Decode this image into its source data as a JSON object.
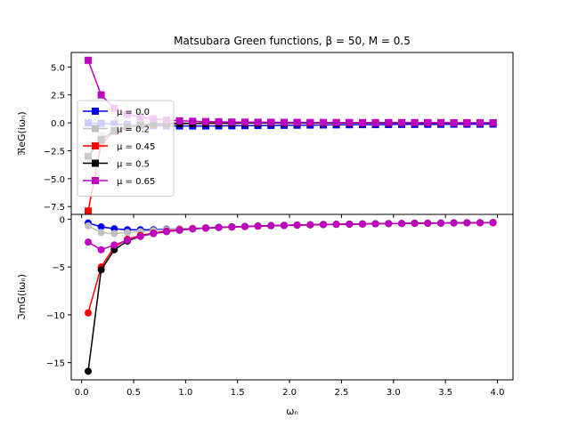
{
  "title": "Matsubara Green functions, β = 50, M = 0.5",
  "chart_data": [
    {
      "type": "line",
      "panel": "top",
      "ylabel": "ℜeG(iωₙ)",
      "xlabel": "",
      "ylim": [
        -8.2,
        6.3
      ],
      "xlim": [
        -0.1,
        4.15
      ],
      "yticks": [
        5.0,
        2.5,
        0.0,
        -2.5,
        -5.0,
        -7.5
      ],
      "ytick_labels": [
        "5.0",
        "2.5",
        "0.0",
        "−2.5",
        "−5.0",
        "−7.5"
      ],
      "xticks": [
        0.0,
        0.5,
        1.0,
        1.5,
        2.0,
        2.5,
        3.0,
        3.5,
        4.0
      ],
      "marker": "square",
      "legend_placement": "center-left",
      "x": [
        0.063,
        0.188,
        0.314,
        0.44,
        0.565,
        0.691,
        0.817,
        0.942,
        1.068,
        1.194,
        1.319,
        1.445,
        1.571,
        1.696,
        1.822,
        1.948,
        2.073,
        2.199,
        2.325,
        2.45,
        2.576,
        2.702,
        2.827,
        2.953,
        3.079,
        3.204,
        3.33,
        3.456,
        3.581,
        3.707,
        3.833,
        3.958
      ],
      "series": [
        {
          "name": "μ = 0.0",
          "color": "#0000ff",
          "values": [
            0.0,
            -0.05,
            -0.1,
            -0.15,
            -0.2,
            -0.25,
            -0.27,
            -0.28,
            -0.28,
            -0.28,
            -0.27,
            -0.26,
            -0.25,
            -0.24,
            -0.23,
            -0.22,
            -0.21,
            -0.2,
            -0.19,
            -0.18,
            -0.17,
            -0.16,
            -0.16,
            -0.15,
            -0.14,
            -0.14,
            -0.13,
            -0.13,
            -0.12,
            -0.12,
            -0.12,
            -0.11
          ]
        },
        {
          "name": "μ = 0.2",
          "color": "#c0c0c0",
          "values": [
            -2.0,
            -1.1,
            -0.55,
            -0.3,
            -0.15,
            -0.05,
            0.0,
            0.02,
            0.03,
            0.03,
            0.03,
            0.03,
            0.02,
            0.02,
            0.02,
            0.02,
            0.02,
            0.01,
            0.01,
            0.01,
            0.01,
            0.01,
            0.01,
            0.01,
            0.01,
            0.01,
            0.01,
            0.0,
            0.0,
            0.0,
            0.0,
            0.0
          ]
        },
        {
          "name": "μ = 0.45",
          "color": "#ff0000",
          "values": [
            -7.9,
            -1.9,
            -0.75,
            -0.4,
            -0.25,
            -0.15,
            -0.1,
            -0.07,
            -0.05,
            -0.04,
            -0.03,
            -0.03,
            -0.02,
            -0.02,
            -0.02,
            -0.02,
            -0.01,
            -0.01,
            -0.01,
            -0.01,
            -0.01,
            -0.01,
            -0.01,
            -0.01,
            -0.01,
            0.0,
            0.0,
            0.0,
            0.0,
            0.0,
            0.0,
            0.0
          ]
        },
        {
          "name": "μ = 0.5",
          "color": "#000000",
          "values": [
            -3.0,
            -1.5,
            -0.7,
            -0.35,
            -0.2,
            -0.12,
            -0.08,
            -0.06,
            -0.05,
            -0.04,
            -0.03,
            -0.03,
            -0.02,
            -0.02,
            -0.02,
            -0.02,
            -0.01,
            -0.01,
            -0.01,
            -0.01,
            -0.01,
            -0.01,
            -0.01,
            -0.01,
            0.0,
            0.0,
            0.0,
            0.0,
            0.0,
            0.0,
            0.0,
            0.0
          ]
        },
        {
          "name": "μ = 0.65",
          "color": "#bf00bf",
          "values": [
            5.6,
            2.5,
            1.3,
            0.75,
            0.5,
            0.35,
            0.25,
            0.18,
            0.14,
            0.11,
            0.09,
            0.07,
            0.06,
            0.05,
            0.05,
            0.04,
            0.04,
            0.03,
            0.03,
            0.03,
            0.03,
            0.02,
            0.02,
            0.02,
            0.02,
            0.02,
            0.02,
            0.02,
            0.01,
            0.01,
            0.01,
            0.01
          ]
        }
      ]
    },
    {
      "type": "line",
      "panel": "bottom",
      "ylabel": "ℑmG(iωₙ)",
      "xlabel": "ωₙ",
      "ylim": [
        -16.8,
        0.5
      ],
      "xlim": [
        -0.1,
        4.15
      ],
      "yticks": [
        0,
        -5,
        -10,
        -15
      ],
      "ytick_labels": [
        "0",
        "−5",
        "−10",
        "−15"
      ],
      "xticks": [
        0.0,
        0.5,
        1.0,
        1.5,
        2.0,
        2.5,
        3.0,
        3.5,
        4.0
      ],
      "xtick_labels": [
        "0.0",
        "0.5",
        "1.0",
        "1.5",
        "2.0",
        "2.5",
        "3.0",
        "3.5",
        "4.0"
      ],
      "marker": "circle",
      "x": [
        0.063,
        0.188,
        0.314,
        0.44,
        0.565,
        0.691,
        0.817,
        0.942,
        1.068,
        1.194,
        1.319,
        1.445,
        1.571,
        1.696,
        1.822,
        1.948,
        2.073,
        2.199,
        2.325,
        2.45,
        2.576,
        2.702,
        2.827,
        2.953,
        3.079,
        3.204,
        3.33,
        3.456,
        3.581,
        3.707,
        3.833,
        3.958
      ],
      "series": [
        {
          "name": "μ = 0.0",
          "color": "#0000ff",
          "values": [
            -0.4,
            -0.8,
            -1.0,
            -1.1,
            -1.1,
            -1.1,
            -1.05,
            -1.0,
            -0.95,
            -0.9,
            -0.85,
            -0.8,
            -0.76,
            -0.72,
            -0.68,
            -0.65,
            -0.62,
            -0.59,
            -0.56,
            -0.54,
            -0.52,
            -0.5,
            -0.48,
            -0.46,
            -0.45,
            -0.43,
            -0.42,
            -0.41,
            -0.39,
            -0.38,
            -0.37,
            -0.36
          ]
        },
        {
          "name": "μ = 0.2",
          "color": "#c0c0c0",
          "values": [
            -0.7,
            -1.4,
            -1.5,
            -1.4,
            -1.3,
            -1.2,
            -1.1,
            -1.0,
            -0.95,
            -0.9,
            -0.85,
            -0.8,
            -0.76,
            -0.72,
            -0.68,
            -0.65,
            -0.62,
            -0.59,
            -0.56,
            -0.54,
            -0.52,
            -0.5,
            -0.48,
            -0.46,
            -0.45,
            -0.43,
            -0.42,
            -0.41,
            -0.39,
            -0.38,
            -0.37,
            -0.36
          ]
        },
        {
          "name": "μ = 0.45",
          "color": "#ff0000",
          "values": [
            -9.8,
            -5.0,
            -2.9,
            -2.1,
            -1.7,
            -1.45,
            -1.25,
            -1.1,
            -1.0,
            -0.93,
            -0.87,
            -0.81,
            -0.77,
            -0.72,
            -0.68,
            -0.65,
            -0.62,
            -0.59,
            -0.56,
            -0.54,
            -0.52,
            -0.5,
            -0.48,
            -0.46,
            -0.45,
            -0.43,
            -0.42,
            -0.41,
            -0.39,
            -0.38,
            -0.37,
            -0.36
          ]
        },
        {
          "name": "μ = 0.5",
          "color": "#000000",
          "values": [
            -15.9,
            -5.3,
            -3.2,
            -2.3,
            -1.8,
            -1.5,
            -1.3,
            -1.15,
            -1.02,
            -0.94,
            -0.87,
            -0.81,
            -0.77,
            -0.72,
            -0.68,
            -0.65,
            -0.62,
            -0.59,
            -0.56,
            -0.54,
            -0.52,
            -0.5,
            -0.48,
            -0.46,
            -0.45,
            -0.43,
            -0.42,
            -0.41,
            -0.39,
            -0.38,
            -0.37,
            -0.36
          ]
        },
        {
          "name": "μ = 0.65",
          "color": "#bf00bf",
          "values": [
            -2.4,
            -3.2,
            -2.7,
            -2.2,
            -1.8,
            -1.5,
            -1.3,
            -1.15,
            -1.02,
            -0.94,
            -0.87,
            -0.81,
            -0.77,
            -0.72,
            -0.68,
            -0.65,
            -0.62,
            -0.59,
            -0.56,
            -0.54,
            -0.52,
            -0.5,
            -0.48,
            -0.46,
            -0.45,
            -0.43,
            -0.42,
            -0.41,
            -0.39,
            -0.38,
            -0.37,
            -0.36
          ]
        }
      ]
    }
  ]
}
